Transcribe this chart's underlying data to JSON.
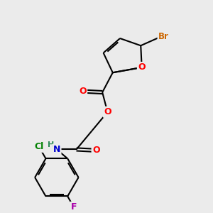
{
  "background_color": "#ebebeb",
  "bond_color": "#000000",
  "atom_colors": {
    "O": "#ff0000",
    "N": "#0000cd",
    "Br": "#cc6600",
    "Cl": "#008000",
    "F": "#aa00aa",
    "H": "#2e8b57",
    "C": "#000000"
  },
  "figsize": [
    3.0,
    3.0
  ],
  "dpi": 100
}
